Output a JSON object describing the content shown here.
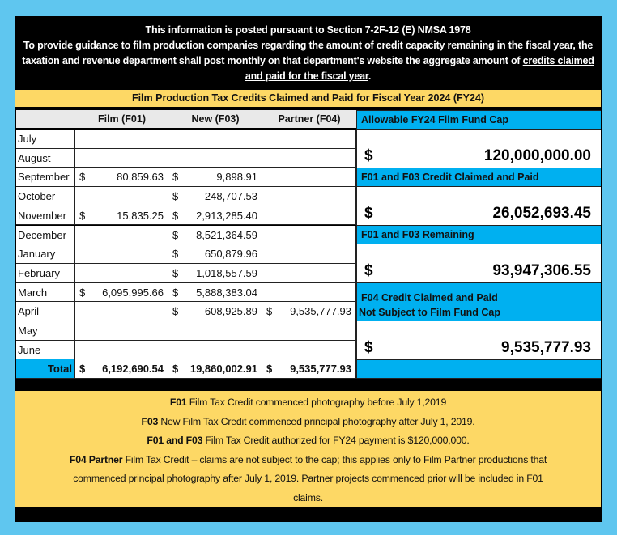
{
  "intro": {
    "line1": "This information is posted pursuant to Section 7-2F-12 (E) NMSA 1978",
    "line2": "To provide guidance to film production companies regarding the amount of credit capacity remaining in the fiscal year, the taxation and revenue department shall post monthly on that department's website the aggregate amount of",
    "underlined": "credits claimed and paid for the fiscal year",
    "end": "."
  },
  "title": "Film Production Tax Credits Claimed and Paid for  Fiscal Year 2024 (FY24)",
  "columns": [
    "Film (F01)",
    "New (F03)",
    "Partner (F04)"
  ],
  "rows": [
    {
      "month": "July",
      "f01": "",
      "f03": "",
      "f04": ""
    },
    {
      "month": "August",
      "f01": "",
      "f03": "",
      "f04": ""
    },
    {
      "month": "September",
      "f01": "80,859.63",
      "f03": "9,898.91",
      "f04": ""
    },
    {
      "month": "October",
      "f01": "",
      "f03": "248,707.53",
      "f04": ""
    },
    {
      "month": "November",
      "f01": "15,835.25",
      "f03": "2,913,285.40",
      "f04": ""
    },
    {
      "month": "December",
      "f01": "",
      "f03": "8,521,364.59",
      "f04": ""
    },
    {
      "month": "January",
      "f01": "",
      "f03": "650,879.96",
      "f04": ""
    },
    {
      "month": "February",
      "f01": "",
      "f03": "1,018,557.59",
      "f04": ""
    },
    {
      "month": "March",
      "f01": "6,095,995.66",
      "f03": "5,888,383.04",
      "f04": ""
    },
    {
      "month": "April",
      "f01": "",
      "f03": "608,925.89",
      "f04": "9,535,777.93"
    },
    {
      "month": "May",
      "f01": "",
      "f03": "",
      "f04": ""
    },
    {
      "month": "June",
      "f01": "",
      "f03": "",
      "f04": ""
    }
  ],
  "currency_symbol": "$",
  "total": {
    "label": "Total",
    "f01": "6,192,690.54",
    "f03": "19,860,002.91",
    "f04": "9,535,777.93"
  },
  "summary": {
    "cap_label": "Allowable FY24 Film Fund Cap",
    "cap_value": "120,000,000.00",
    "claimed_label": "F01 and F03 Credit Claimed and Paid",
    "claimed_value": "26,052,693.45",
    "remaining_label": "F01 and F03 Remaining",
    "remaining_value": "93,947,306.55",
    "f04_label_1": "F04 Credit Claimed and Paid",
    "f04_label_2": "Not Subject to Film Fund Cap",
    "f04_value": "9,535,777.93"
  },
  "notes": [
    {
      "bold": "F01",
      "text": " Film Tax Credit commenced photography before July 1,2019"
    },
    {
      "bold": "F03",
      "text": " New Film Tax Credit commenced principal photography after July 1, 2019."
    },
    {
      "bold": "F01 and F03",
      "text": " Film Tax Credit authorized for FY24 payment is $120,000,000."
    },
    {
      "bold": "F04 Partner",
      "text": " Film Tax Credit – claims are not subject to the cap; this applies only to  Film Partner productions that commenced principal photography after July 1, 2019.  Partner projects commenced prior will be included in F01 claims."
    }
  ],
  "colors": {
    "background": "#5fc6ef",
    "accent_blue": "#00b0f0",
    "yellow": "#fdd865",
    "panel": "#000000"
  }
}
